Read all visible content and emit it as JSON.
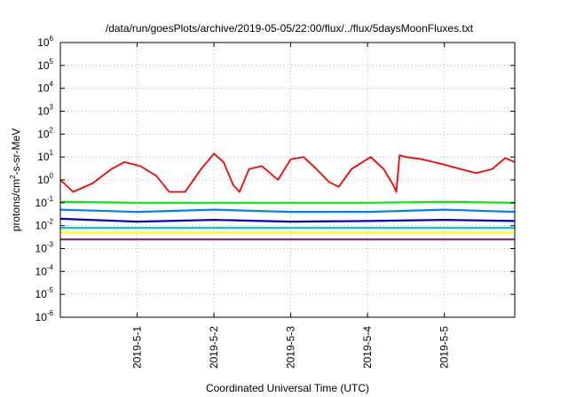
{
  "chart_data": {
    "type": "line",
    "title": "/data/run/goesPlots/archive/2019-05-05/22:00/flux/../flux/5daysMoonFluxes.txt",
    "xlabel": "Coordinated Universal Time (UTC)",
    "ylabel_parts": [
      "protons/cm",
      "2",
      "-s-sr-MeV"
    ],
    "xlim": [
      "2019-04-30T00:00Z",
      "2019-05-05T22:00Z"
    ],
    "ylim": [
      1e-06,
      1000000.0
    ],
    "yscale": "log",
    "grid": true,
    "x_ticks": [
      "2019-5-1",
      "2019-5-2",
      "2019-5-3",
      "2019-5-4",
      "2019-5-5"
    ],
    "y_ticks": [
      {
        "base": "10",
        "exp": "-6"
      },
      {
        "base": "10",
        "exp": "-5"
      },
      {
        "base": "10",
        "exp": "-4"
      },
      {
        "base": "10",
        "exp": "-3"
      },
      {
        "base": "10",
        "exp": "-2"
      },
      {
        "base": "10",
        "exp": "-1"
      },
      {
        "base": "10",
        "exp": "0"
      },
      {
        "base": "10",
        "exp": "1"
      },
      {
        "base": "10",
        "exp": "2"
      },
      {
        "base": "10",
        "exp": "3"
      },
      {
        "base": "10",
        "exp": "4"
      },
      {
        "base": "10",
        "exp": "5"
      },
      {
        "base": "10",
        "exp": "6"
      }
    ],
    "series": [
      {
        "color": "#ff0000",
        "x": [
          "2019-04-30T00:00Z",
          "2019-04-30T04:00Z",
          "2019-04-30T10:00Z",
          "2019-04-30T16:00Z",
          "2019-04-30T20:00Z",
          "2019-05-01T01:00Z",
          "2019-05-01T06:00Z",
          "2019-05-01T10:00Z",
          "2019-05-01T15:00Z",
          "2019-05-01T20:00Z",
          "2019-05-02T00:00Z",
          "2019-05-02T03:00Z",
          "2019-05-02T06:00Z",
          "2019-05-02T08:00Z",
          "2019-05-02T11:00Z",
          "2019-05-02T15:00Z",
          "2019-05-02T20:00Z",
          "2019-05-03T00:00Z",
          "2019-05-03T04:00Z",
          "2019-05-03T08:00Z",
          "2019-05-03T12:00Z",
          "2019-05-03T15:00Z",
          "2019-05-03T19:00Z",
          "2019-05-04T01:00Z",
          "2019-05-04T05:00Z",
          "2019-05-04T08:00Z",
          "2019-05-04T09:00Z",
          "2019-05-04T10:00Z",
          "2019-05-04T12:00Z",
          "2019-05-04T17:00Z",
          "2019-05-04T23:00Z",
          "2019-05-05T05:00Z",
          "2019-05-05T10:00Z",
          "2019-05-05T15:00Z",
          "2019-05-05T19:00Z",
          "2019-05-05T22:00Z"
        ],
        "y": [
          1.0,
          0.3,
          0.7,
          3,
          6,
          4,
          1.5,
          0.3,
          0.3,
          3,
          14,
          6,
          0.6,
          0.3,
          3,
          4,
          1,
          8,
          10,
          3,
          0.8,
          0.5,
          3,
          10,
          3,
          0.6,
          0.3,
          12,
          10,
          8,
          5,
          3,
          2,
          3,
          9,
          6
        ]
      },
      {
        "color": "#00ee00",
        "x": [
          "2019-04-30T00:00Z",
          "2019-05-01T00:00Z",
          "2019-05-02T00:00Z",
          "2019-05-03T00:00Z",
          "2019-05-04T00:00Z",
          "2019-05-05T00:00Z",
          "2019-05-05T22:00Z"
        ],
        "y": [
          0.11,
          0.1,
          0.1,
          0.1,
          0.1,
          0.11,
          0.1
        ]
      },
      {
        "color": "#0080ff",
        "x": [
          "2019-04-30T00:00Z",
          "2019-05-01T00:00Z",
          "2019-05-02T00:00Z",
          "2019-05-03T00:00Z",
          "2019-05-04T00:00Z",
          "2019-05-05T00:00Z",
          "2019-05-05T22:00Z"
        ],
        "y": [
          0.05,
          0.04,
          0.05,
          0.04,
          0.04,
          0.05,
          0.04
        ]
      },
      {
        "color": "#0000cc",
        "x": [
          "2019-04-30T00:00Z",
          "2019-05-01T00:00Z",
          "2019-05-02T00:00Z",
          "2019-05-03T00:00Z",
          "2019-05-04T00:00Z",
          "2019-05-05T00:00Z",
          "2019-05-05T22:00Z"
        ],
        "y": [
          0.02,
          0.015,
          0.018,
          0.015,
          0.016,
          0.018,
          0.016
        ]
      },
      {
        "color": "#00c0c0",
        "x": [
          "2019-04-30T00:00Z",
          "2019-05-01T00:00Z",
          "2019-05-02T00:00Z",
          "2019-05-03T00:00Z",
          "2019-05-04T00:00Z",
          "2019-05-05T00:00Z",
          "2019-05-05T22:00Z"
        ],
        "y": [
          0.008,
          0.008,
          0.008,
          0.008,
          0.008,
          0.008,
          0.008
        ]
      },
      {
        "color": "#ffff00",
        "x": [
          "2019-04-30T00:00Z",
          "2019-05-01T00:00Z",
          "2019-05-02T00:00Z",
          "2019-05-03T00:00Z",
          "2019-05-04T00:00Z",
          "2019-05-05T00:00Z",
          "2019-05-05T22:00Z"
        ],
        "y": [
          0.005,
          0.005,
          0.005,
          0.005,
          0.005,
          0.005,
          0.005
        ]
      },
      {
        "color": "#882266",
        "x": [
          "2019-04-30T00:00Z",
          "2019-05-01T00:00Z",
          "2019-05-02T00:00Z",
          "2019-05-03T00:00Z",
          "2019-05-04T00:00Z",
          "2019-05-05T00:00Z",
          "2019-05-05T22:00Z"
        ],
        "y": [
          0.0025,
          0.0025,
          0.0025,
          0.0025,
          0.0025,
          0.0025,
          0.0025
        ]
      }
    ]
  }
}
